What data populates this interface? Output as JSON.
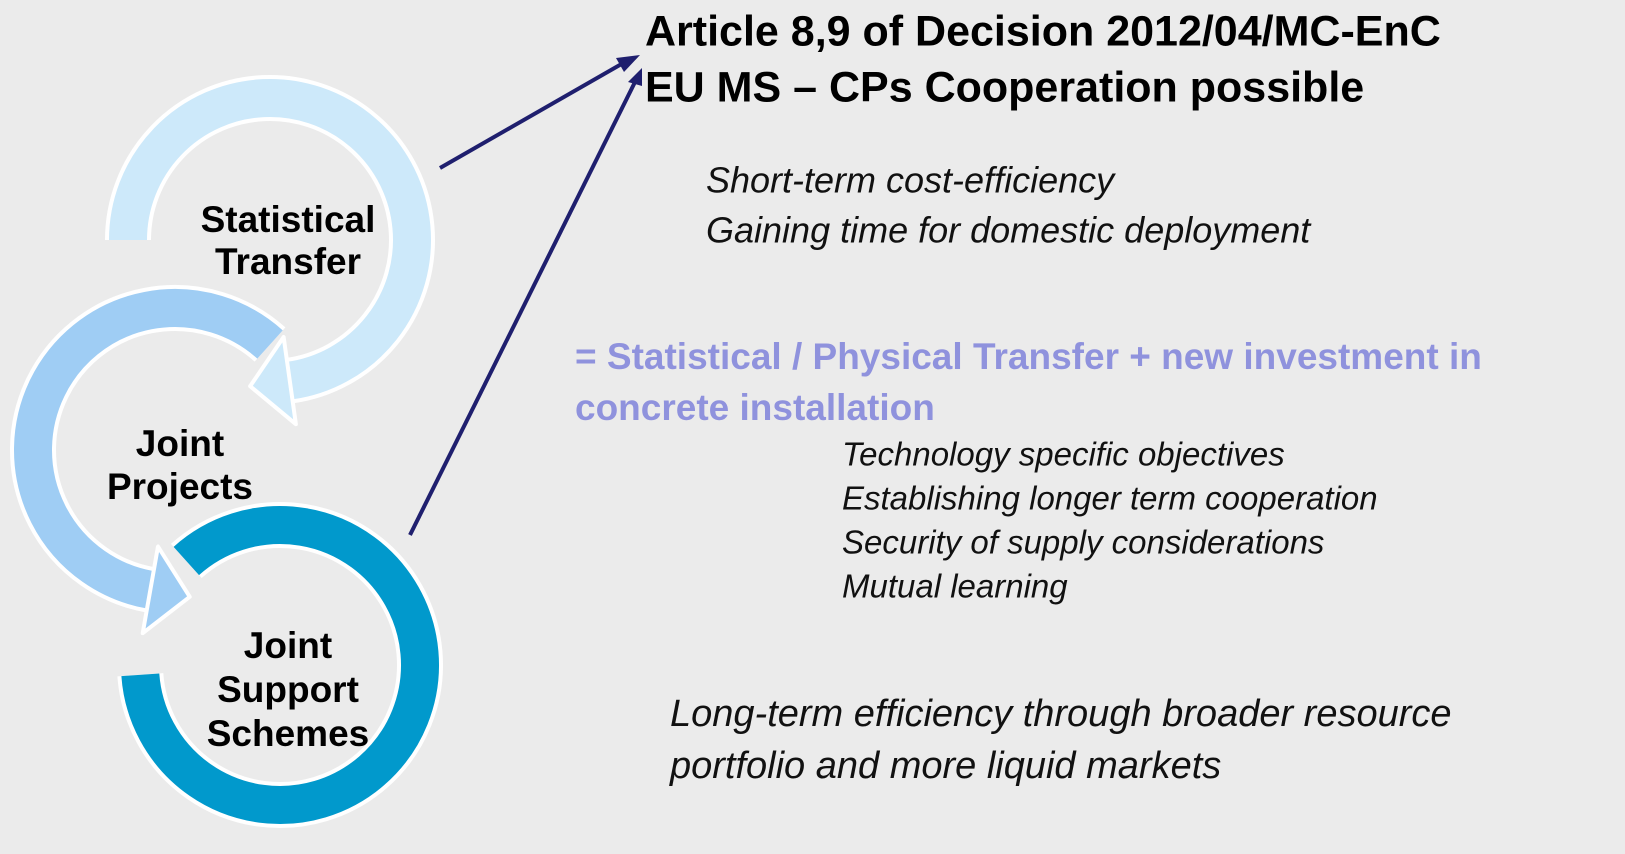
{
  "title": [
    "Article 8,9 of Decision 2012/04/MC-EnC",
    "EU MS – CPs Cooperation possible"
  ],
  "cycle": [
    {
      "label": [
        "Statistical",
        "Transfer"
      ]
    },
    {
      "label": [
        "Joint",
        "Projects"
      ]
    },
    {
      "label": [
        "Joint",
        "Support",
        "Schemes"
      ]
    }
  ],
  "statistical_transfer": [
    "Short-term cost-efficiency",
    "Gaining time for domestic deployment"
  ],
  "joint_projects": {
    "heading": [
      "= Statistical / Physical Transfer + new investment in",
      "concrete installation"
    ],
    "items": [
      "Technology specific objectives",
      "Establishing longer term cooperation",
      "Security of supply considerations",
      "Mutual learning"
    ]
  },
  "joint_support_schemes": [
    "Long-term efficiency through broader resource",
    "portfolio and more liquid markets"
  ]
}
